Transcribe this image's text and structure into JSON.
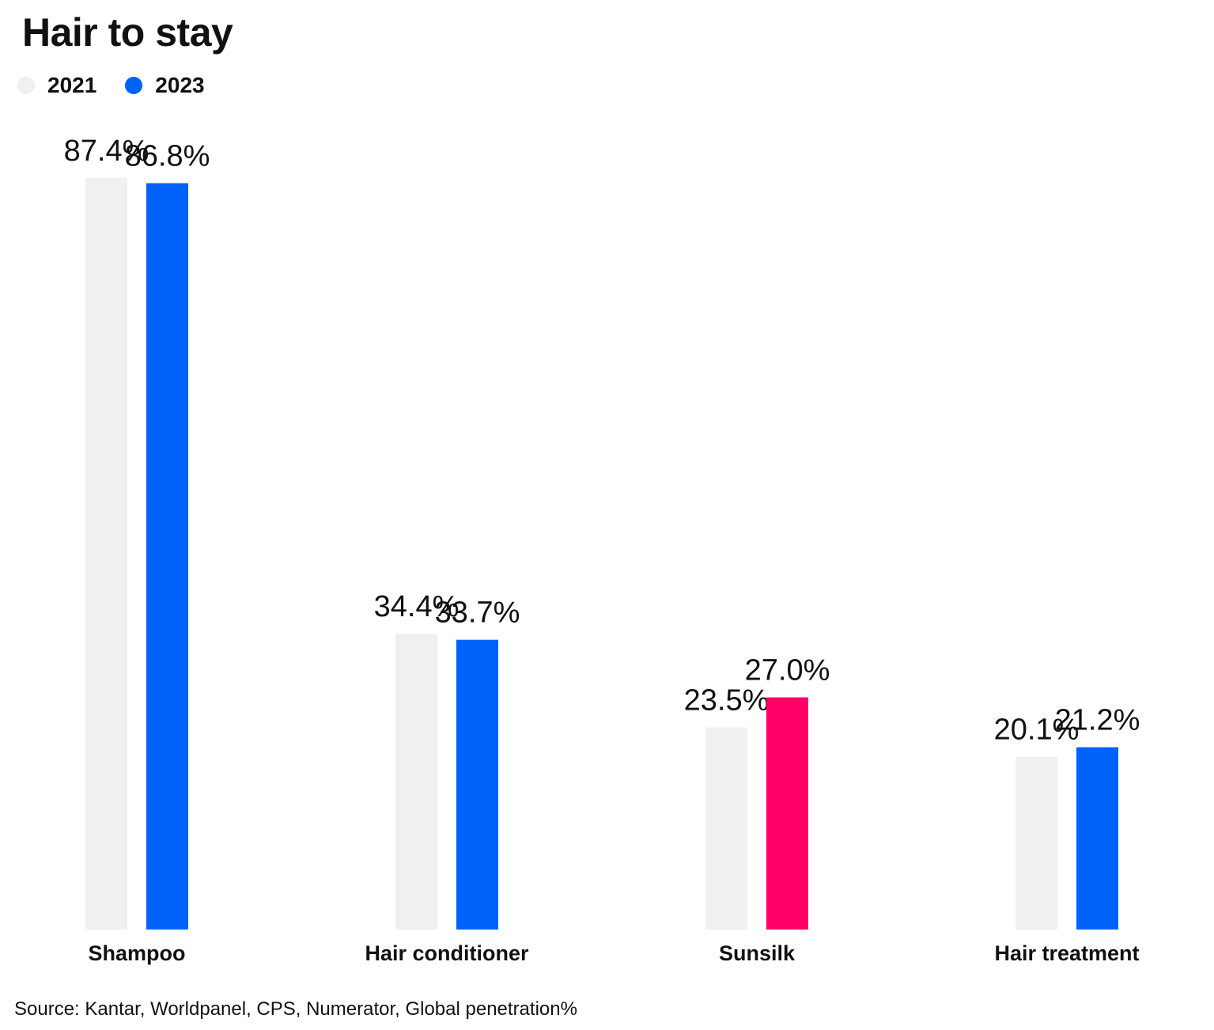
{
  "chart_data": {
    "type": "bar",
    "title": "Hair to stay",
    "categories": [
      "Shampoo",
      "Hair conditioner",
      "Sunsilk",
      "Hair treatment"
    ],
    "series": [
      {
        "name": "2021",
        "values": [
          87.4,
          34.4,
          23.5,
          20.1
        ],
        "labels": [
          "87.4%",
          "34.4%",
          "23.5%",
          "20.1%"
        ],
        "color": "#f0f0ef"
      },
      {
        "name": "2023",
        "values": [
          86.8,
          33.7,
          27.0,
          21.2
        ],
        "labels": [
          "86.8%",
          "33.7%",
          "27.0%",
          "21.2%"
        ],
        "color": "#0062fb",
        "highlight": {
          "index": 2,
          "color": "#ff0066"
        }
      }
    ],
    "ylim": [
      0,
      87.4
    ],
    "legend_position": "top-left",
    "grid": false,
    "source": "Source: Kantar, Worldpanel, CPS, Numerator, Global penetration%"
  }
}
